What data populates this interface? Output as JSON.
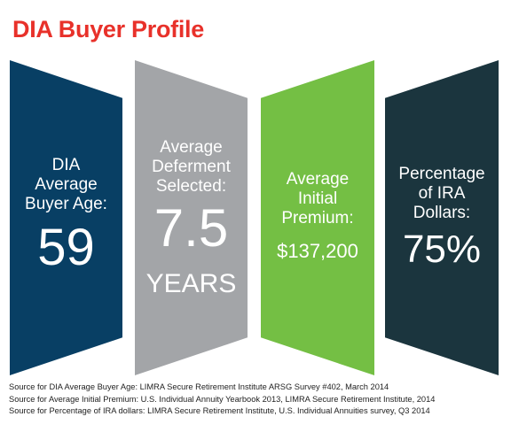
{
  "title": "DIA Buyer Profile",
  "colors": {
    "title": "#e8312a",
    "panel1": "#083f64",
    "panel2": "#a3a5a8",
    "panel3": "#74bf44",
    "panel4": "#1b353e"
  },
  "panels": [
    {
      "label": "DIA\nAverage\nBuyer Age:",
      "value": "59",
      "unit": ""
    },
    {
      "label": "Average\nDeferment\nSelected:",
      "value": "7.5",
      "unit": "YEARS"
    },
    {
      "label": "Average\nInitial\nPremium:",
      "value": "$137,200",
      "unit": ""
    },
    {
      "label": "Percentage\nof IRA\nDollars:",
      "value": "75%",
      "unit": ""
    }
  ],
  "sources": [
    "Source for DIA Average Buyer Age: LIMRA Secure Retirement Institute ARSG Survey #402, March 2014",
    "Source for Average Initial Premium: U.S. Individual Annuity Yearbook 2013, LIMRA Secure Retirement Institute, 2014",
    "Source for Percentage of IRA dollars: LIMRA Secure Retirement Institute, U.S. Individual Annuities survey, Q3 2014"
  ]
}
